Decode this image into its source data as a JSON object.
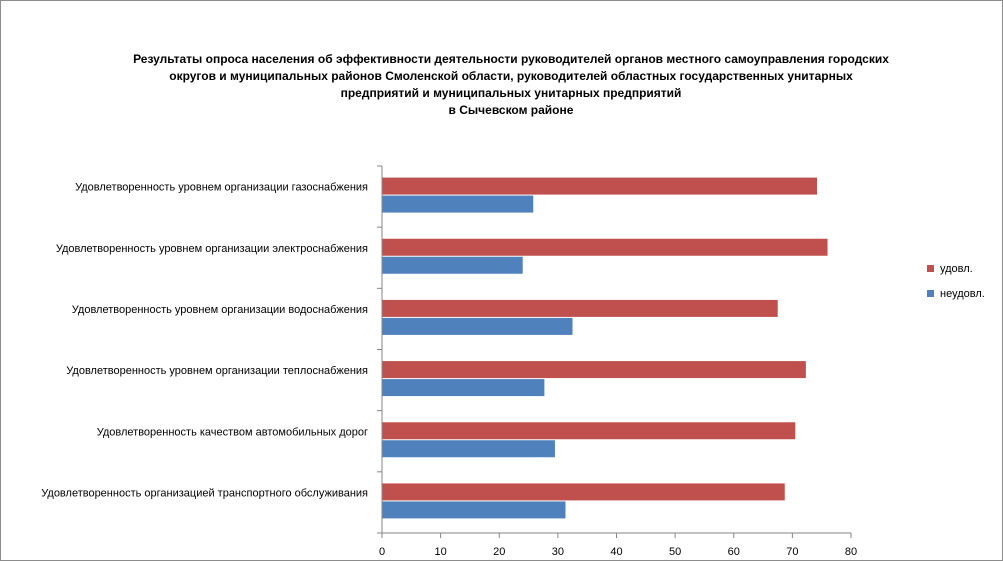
{
  "chart_data": {
    "type": "bar",
    "orientation": "horizontal",
    "title_lines": [
      "Результаты опроса населения об эффективности деятельности руководителей органов местного самоуправления городских",
      "округов и муниципальных районов Смоленской области, руководителей областных государственных унитарных",
      "предприятий и муниципальных унитарных предприятий",
      "в Сычевском районе"
    ],
    "categories": [
      "Удовлетворенность  уровнем  организации газоснабжения",
      "Удовлетворенность  уровнем организации электроснабжения",
      "Удовлетворенность  уровнем  организации водоснабжения",
      "Удовлетворенность  уровнем  организации теплоснабжения",
      "Удовлетворенность  качеством  автомобильных дорог",
      "Удовлетворенность  организацией  транспортного обслуживания"
    ],
    "series": [
      {
        "name": "удовл.",
        "color": "#c0504d",
        "values": [
          74.2,
          76.0,
          67.5,
          72.3,
          70.5,
          68.7
        ]
      },
      {
        "name": "неудовл.",
        "color": "#4f81bd",
        "values": [
          25.8,
          24.0,
          32.5,
          27.7,
          29.5,
          31.3
        ]
      }
    ],
    "legend_order": [
      "удовл.",
      "неудовл."
    ],
    "legend_position": "right",
    "xlim": [
      0,
      80
    ],
    "x_ticks": [
      "0",
      "10",
      "20",
      "30",
      "40",
      "50",
      "60",
      "70",
      "80"
    ],
    "grid": false,
    "xlabel": "",
    "ylabel": ""
  }
}
